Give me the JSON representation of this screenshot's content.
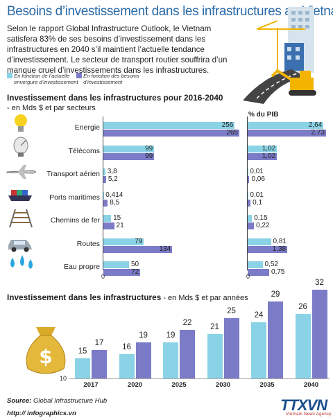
{
  "title": "Besoins d’investissement dans les infrastructures au Vietnam",
  "intro": "Selon le rapport Global Infrastructure Outlook, le Vietnam satisfera 83% de ses besoins d’investissement dans les infrastructures en 2040 s’il maintient l’actuelle tendance d’investissement. Le secteur de transport routier souffrira d’un manque cruel d’investissements dans les infrastructures.",
  "legend": {
    "current_line1": "En fonction de l’actuelle",
    "current_line2": "envergure d’investissement",
    "needs_line1": "En fonction des besoins",
    "needs_line2": "d’investissement"
  },
  "colors": {
    "current": "#8ad3e7",
    "needs": "#7c7bc7",
    "title": "#2a6aa8"
  },
  "section1": {
    "title": "Investissement dans les infrastructures pour 2016-2040",
    "subtitle": "- en Mds $ et par secteurs",
    "pib_header": "% du PIB",
    "axis_zero_left": "0",
    "axis_zero_right": "0"
  },
  "section2": {
    "title": "Investissement dans les infrastructures",
    "subtitle": " - en Mds $ et par années",
    "y_axis_min_label": "10"
  },
  "chart_data": [
    {
      "type": "bar",
      "orientation": "horizontal",
      "title": "Investissement dans les infrastructures pour 2016-2040",
      "subtitle": "- en Mds $ et par secteurs",
      "categories": [
        "Energie",
        "Télécoms",
        "Transport aérien",
        "Ports maritimes",
        "Chemins de fer",
        "Routes",
        "Eau propre"
      ],
      "category_icons": [
        "lightbulb-icon",
        "satellite-dish-icon",
        "airplane-icon",
        "container-ship-icon",
        "railway-track-icon",
        "car-icon",
        "water-drops-icon"
      ],
      "series": [
        {
          "name": "En fonction de l’actuelle envergure d’investissement",
          "values": [
            256,
            99,
            3.8,
            0.414,
            15,
            79,
            50
          ],
          "labels": [
            "256",
            "99",
            "3,8",
            "0,414",
            "15",
            "79",
            "50"
          ]
        },
        {
          "name": "En fonction des besoins d’investissement",
          "values": [
            265,
            99,
            5.2,
            8.5,
            21,
            134,
            72
          ],
          "labels": [
            "265",
            "99",
            "5,2",
            "8,5",
            "21",
            "134",
            "72"
          ]
        }
      ],
      "xlim": [
        0,
        265
      ]
    },
    {
      "type": "bar",
      "orientation": "horizontal",
      "title": "% du PIB",
      "categories": [
        "Energie",
        "Télécoms",
        "Transport aérien",
        "Ports maritimes",
        "Chemins de fer",
        "Routes",
        "Eau propre"
      ],
      "series": [
        {
          "name": "En fonction de l’actuelle envergure d’investissement",
          "values": [
            2.64,
            1.02,
            0.01,
            0.01,
            0.15,
            0.81,
            0.52
          ],
          "labels": [
            "2,64",
            "1,02",
            "0,01",
            "0,01",
            "0,15",
            "0,81",
            "0,52"
          ]
        },
        {
          "name": "En fonction des besoins d’investissement",
          "values": [
            2.73,
            1.02,
            0.06,
            0.1,
            0.22,
            1.38,
            0.75
          ],
          "labels": [
            "2,73",
            "1,02",
            "0,06",
            "0,1",
            "0,22",
            "1,38",
            "0,75"
          ]
        }
      ],
      "xlim": [
        0,
        2.73
      ]
    },
    {
      "type": "bar",
      "orientation": "vertical",
      "title": "Investissement dans les infrastructures",
      "subtitle": "- en Mds $ et par années",
      "categories": [
        "2017",
        "2020",
        "2025",
        "2030",
        "2035",
        "2040"
      ],
      "series": [
        {
          "name": "En fonction de l’actuelle envergure d’investissement",
          "values": [
            15,
            16,
            19,
            21,
            24,
            26
          ]
        },
        {
          "name": "En fonction des besoins d’investissement",
          "values": [
            17,
            19,
            22,
            25,
            29,
            32
          ]
        }
      ],
      "ylim": [
        10,
        32
      ]
    }
  ],
  "footer": {
    "source_label": "Source:",
    "source_value": " Global Infrastructure Hub",
    "site": "http:// infographics.vn",
    "brand": "TTXVN",
    "brand_sub": "Vietnam News Agency"
  }
}
